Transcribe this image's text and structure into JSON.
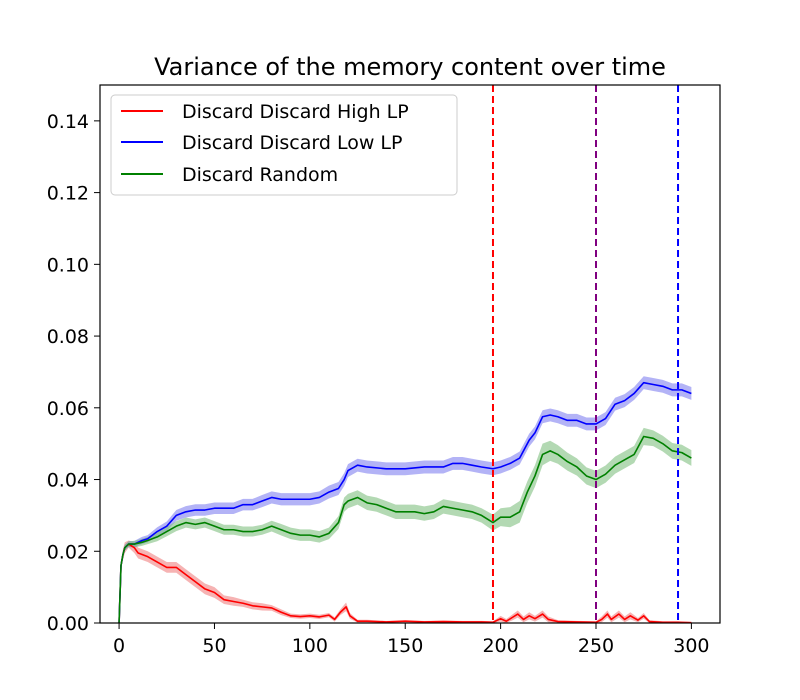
{
  "chart_data": {
    "type": "line",
    "title": "Variance of the memory content over time",
    "xlabel": "",
    "ylabel": "",
    "xlim": [
      -10,
      315
    ],
    "ylim": [
      0,
      0.15
    ],
    "x_ticks": [
      0,
      50,
      100,
      150,
      200,
      250,
      300
    ],
    "y_ticks": [
      0.0,
      0.02,
      0.04,
      0.06,
      0.08,
      0.1,
      0.12,
      0.14
    ],
    "x_tick_labels": [
      "0",
      "50",
      "100",
      "150",
      "200",
      "250",
      "300"
    ],
    "y_tick_labels": [
      "0.00",
      "0.02",
      "0.04",
      "0.06",
      "0.08",
      "0.10",
      "0.12",
      "0.14"
    ],
    "grid": false,
    "legend_position": "top-left",
    "series": [
      {
        "name": "Discard Discard High LP",
        "color": "#ff0000",
        "band_color": "#f08080",
        "points": [
          [
            0,
            0.0
          ],
          [
            1,
            0.016
          ],
          [
            2,
            0.019
          ],
          [
            3,
            0.021
          ],
          [
            5,
            0.022
          ],
          [
            8,
            0.021
          ],
          [
            10,
            0.0195
          ],
          [
            15,
            0.0185
          ],
          [
            20,
            0.017
          ],
          [
            25,
            0.0155
          ],
          [
            30,
            0.0155
          ],
          [
            35,
            0.0135
          ],
          [
            40,
            0.0115
          ],
          [
            45,
            0.0095
          ],
          [
            50,
            0.0085
          ],
          [
            55,
            0.0065
          ],
          [
            60,
            0.006
          ],
          [
            65,
            0.0055
          ],
          [
            70,
            0.0048
          ],
          [
            75,
            0.0045
          ],
          [
            80,
            0.0042
          ],
          [
            85,
            0.003
          ],
          [
            90,
            0.002
          ],
          [
            95,
            0.0018
          ],
          [
            100,
            0.002
          ],
          [
            105,
            0.0017
          ],
          [
            110,
            0.0022
          ],
          [
            113,
            0.001
          ],
          [
            116,
            0.003
          ],
          [
            119,
            0.0045
          ],
          [
            121,
            0.002
          ],
          [
            125,
            0.0005
          ],
          [
            130,
            0.0005
          ],
          [
            140,
            0.0003
          ],
          [
            150,
            0.0005
          ],
          [
            160,
            0.0003
          ],
          [
            170,
            0.0004
          ],
          [
            180,
            0.0003
          ],
          [
            190,
            0.0003
          ],
          [
            196,
            0.0002
          ],
          [
            200,
            0.0012
          ],
          [
            203,
            0.0005
          ],
          [
            206,
            0.0015
          ],
          [
            209,
            0.0025
          ],
          [
            212,
            0.001
          ],
          [
            215,
            0.002
          ],
          [
            218,
            0.0012
          ],
          [
            222,
            0.0025
          ],
          [
            225,
            0.001
          ],
          [
            230,
            0.0004
          ],
          [
            240,
            0.0003
          ],
          [
            250,
            0.0002
          ],
          [
            253,
            0.001
          ],
          [
            256,
            0.0025
          ],
          [
            258,
            0.001
          ],
          [
            262,
            0.0025
          ],
          [
            265,
            0.001
          ],
          [
            268,
            0.002
          ],
          [
            272,
            0.0008
          ],
          [
            275,
            0.002
          ],
          [
            278,
            0.0004
          ],
          [
            285,
            0.0002
          ],
          [
            293,
            0.0002
          ],
          [
            300,
            0.0001
          ]
        ],
        "band": [
          0.0003,
          0.001,
          0.0015,
          0.0015,
          0.001,
          0.0015,
          0.0015,
          0.0015,
          0.0015,
          0.0015,
          0.0015,
          0.0015,
          0.0015,
          0.0015,
          0.0015,
          0.0012,
          0.0012,
          0.001,
          0.001,
          0.001,
          0.0008,
          0.0008,
          0.0006,
          0.0006,
          0.0006,
          0.0006,
          0.0006,
          0.0006,
          0.0008,
          0.0012,
          0.0008,
          0.0004,
          0.0004,
          0.0003,
          0.0003,
          0.0003,
          0.0003,
          0.0003,
          0.0003,
          0.0003,
          0.0008,
          0.0006,
          0.0008,
          0.001,
          0.0008,
          0.001,
          0.0008,
          0.001,
          0.0008,
          0.0004,
          0.0003,
          0.0003,
          0.0008,
          0.001,
          0.0008,
          0.001,
          0.0008,
          0.001,
          0.0006,
          0.0008,
          0.0004,
          0.0003,
          0.0003,
          0.0002
        ]
      },
      {
        "name": "Discard Discard Low LP",
        "color": "#0000ff",
        "band_color": "#8080f0",
        "points": [
          [
            0,
            0.0
          ],
          [
            1,
            0.016
          ],
          [
            2,
            0.019
          ],
          [
            3,
            0.021
          ],
          [
            5,
            0.022
          ],
          [
            8,
            0.022
          ],
          [
            12,
            0.023
          ],
          [
            15,
            0.0235
          ],
          [
            20,
            0.0255
          ],
          [
            25,
            0.027
          ],
          [
            30,
            0.03
          ],
          [
            35,
            0.031
          ],
          [
            40,
            0.0315
          ],
          [
            45,
            0.0315
          ],
          [
            50,
            0.032
          ],
          [
            55,
            0.032
          ],
          [
            60,
            0.032
          ],
          [
            65,
            0.033
          ],
          [
            70,
            0.033
          ],
          [
            75,
            0.034
          ],
          [
            80,
            0.035
          ],
          [
            85,
            0.0345
          ],
          [
            90,
            0.0345
          ],
          [
            95,
            0.0345
          ],
          [
            100,
            0.0345
          ],
          [
            105,
            0.035
          ],
          [
            110,
            0.0365
          ],
          [
            115,
            0.0375
          ],
          [
            118,
            0.04
          ],
          [
            120,
            0.0425
          ],
          [
            125,
            0.044
          ],
          [
            130,
            0.0435
          ],
          [
            140,
            0.043
          ],
          [
            150,
            0.043
          ],
          [
            160,
            0.0435
          ],
          [
            170,
            0.0435
          ],
          [
            175,
            0.0445
          ],
          [
            180,
            0.0445
          ],
          [
            185,
            0.044
          ],
          [
            190,
            0.0435
          ],
          [
            196,
            0.043
          ],
          [
            200,
            0.0435
          ],
          [
            205,
            0.0445
          ],
          [
            210,
            0.046
          ],
          [
            215,
            0.051
          ],
          [
            218,
            0.053
          ],
          [
            222,
            0.0575
          ],
          [
            226,
            0.058
          ],
          [
            230,
            0.0575
          ],
          [
            235,
            0.0565
          ],
          [
            240,
            0.0565
          ],
          [
            245,
            0.0555
          ],
          [
            250,
            0.0555
          ],
          [
            255,
            0.057
          ],
          [
            260,
            0.061
          ],
          [
            265,
            0.062
          ],
          [
            270,
            0.064
          ],
          [
            275,
            0.067
          ],
          [
            280,
            0.0665
          ],
          [
            285,
            0.066
          ],
          [
            290,
            0.065
          ],
          [
            295,
            0.065
          ],
          [
            300,
            0.064
          ]
        ],
        "band": [
          0.0002,
          0.0006,
          0.0008,
          0.0008,
          0.0008,
          0.0009,
          0.001,
          0.001,
          0.0012,
          0.0013,
          0.0015,
          0.0016,
          0.0016,
          0.0016,
          0.0016,
          0.0016,
          0.0016,
          0.0016,
          0.0016,
          0.0017,
          0.0017,
          0.0017,
          0.0017,
          0.0017,
          0.0017,
          0.0017,
          0.0018,
          0.0018,
          0.0018,
          0.0018,
          0.0018,
          0.0018,
          0.0018,
          0.0018,
          0.0018,
          0.0018,
          0.0018,
          0.0018,
          0.0018,
          0.0018,
          0.0018,
          0.0018,
          0.0018,
          0.0018,
          0.0018,
          0.0018,
          0.0018,
          0.0018,
          0.0018,
          0.0018,
          0.0018,
          0.0018,
          0.0018,
          0.0018,
          0.0018,
          0.0018,
          0.0018,
          0.0018,
          0.0018,
          0.0018,
          0.0018,
          0.0018,
          0.0018
        ]
      },
      {
        "name": "Discard Random",
        "color": "#008000",
        "band_color": "#80c080",
        "points": [
          [
            0,
            0.0
          ],
          [
            1,
            0.016
          ],
          [
            2,
            0.019
          ],
          [
            3,
            0.021
          ],
          [
            5,
            0.022
          ],
          [
            8,
            0.022
          ],
          [
            12,
            0.0225
          ],
          [
            15,
            0.023
          ],
          [
            20,
            0.024
          ],
          [
            25,
            0.0255
          ],
          [
            30,
            0.027
          ],
          [
            35,
            0.028
          ],
          [
            40,
            0.0275
          ],
          [
            45,
            0.028
          ],
          [
            50,
            0.027
          ],
          [
            55,
            0.026
          ],
          [
            60,
            0.026
          ],
          [
            65,
            0.0255
          ],
          [
            70,
            0.0255
          ],
          [
            75,
            0.026
          ],
          [
            80,
            0.027
          ],
          [
            85,
            0.026
          ],
          [
            90,
            0.025
          ],
          [
            95,
            0.0245
          ],
          [
            100,
            0.0245
          ],
          [
            105,
            0.024
          ],
          [
            110,
            0.025
          ],
          [
            115,
            0.028
          ],
          [
            118,
            0.033
          ],
          [
            120,
            0.034
          ],
          [
            125,
            0.035
          ],
          [
            130,
            0.0335
          ],
          [
            135,
            0.033
          ],
          [
            140,
            0.032
          ],
          [
            145,
            0.031
          ],
          [
            150,
            0.031
          ],
          [
            155,
            0.031
          ],
          [
            160,
            0.0305
          ],
          [
            165,
            0.031
          ],
          [
            170,
            0.0325
          ],
          [
            175,
            0.032
          ],
          [
            180,
            0.0315
          ],
          [
            185,
            0.031
          ],
          [
            190,
            0.03
          ],
          [
            196,
            0.028
          ],
          [
            200,
            0.0295
          ],
          [
            205,
            0.0295
          ],
          [
            210,
            0.031
          ],
          [
            214,
            0.0365
          ],
          [
            218,
            0.041
          ],
          [
            222,
            0.047
          ],
          [
            226,
            0.048
          ],
          [
            230,
            0.047
          ],
          [
            235,
            0.045
          ],
          [
            240,
            0.0435
          ],
          [
            245,
            0.041
          ],
          [
            250,
            0.04
          ],
          [
            255,
            0.0415
          ],
          [
            260,
            0.044
          ],
          [
            265,
            0.0455
          ],
          [
            270,
            0.047
          ],
          [
            275,
            0.052
          ],
          [
            280,
            0.0515
          ],
          [
            285,
            0.05
          ],
          [
            290,
            0.048
          ],
          [
            295,
            0.0475
          ],
          [
            300,
            0.046
          ]
        ],
        "band": [
          0.0002,
          0.0006,
          0.0008,
          0.0008,
          0.0008,
          0.0009,
          0.001,
          0.001,
          0.0012,
          0.0013,
          0.0014,
          0.0014,
          0.0014,
          0.0014,
          0.0014,
          0.0014,
          0.0014,
          0.0014,
          0.0014,
          0.0014,
          0.0015,
          0.0016,
          0.0016,
          0.0016,
          0.0016,
          0.0016,
          0.0016,
          0.0018,
          0.002,
          0.002,
          0.002,
          0.002,
          0.002,
          0.002,
          0.002,
          0.002,
          0.002,
          0.002,
          0.002,
          0.002,
          0.002,
          0.002,
          0.002,
          0.002,
          0.0022,
          0.0025,
          0.0028,
          0.003,
          0.003,
          0.003,
          0.003,
          0.0028,
          0.0026,
          0.0025,
          0.0024,
          0.0024,
          0.0024,
          0.0024,
          0.0024,
          0.0024,
          0.0024,
          0.0024,
          0.0022,
          0.0022,
          0.0022,
          0.0022,
          0.0022
        ]
      }
    ],
    "vlines": [
      {
        "x": 196,
        "color": "#ff0000",
        "style": "dashed"
      },
      {
        "x": 250,
        "color": "#800080",
        "style": "dashed"
      },
      {
        "x": 293,
        "color": "#0000ff",
        "style": "dashed"
      }
    ]
  }
}
